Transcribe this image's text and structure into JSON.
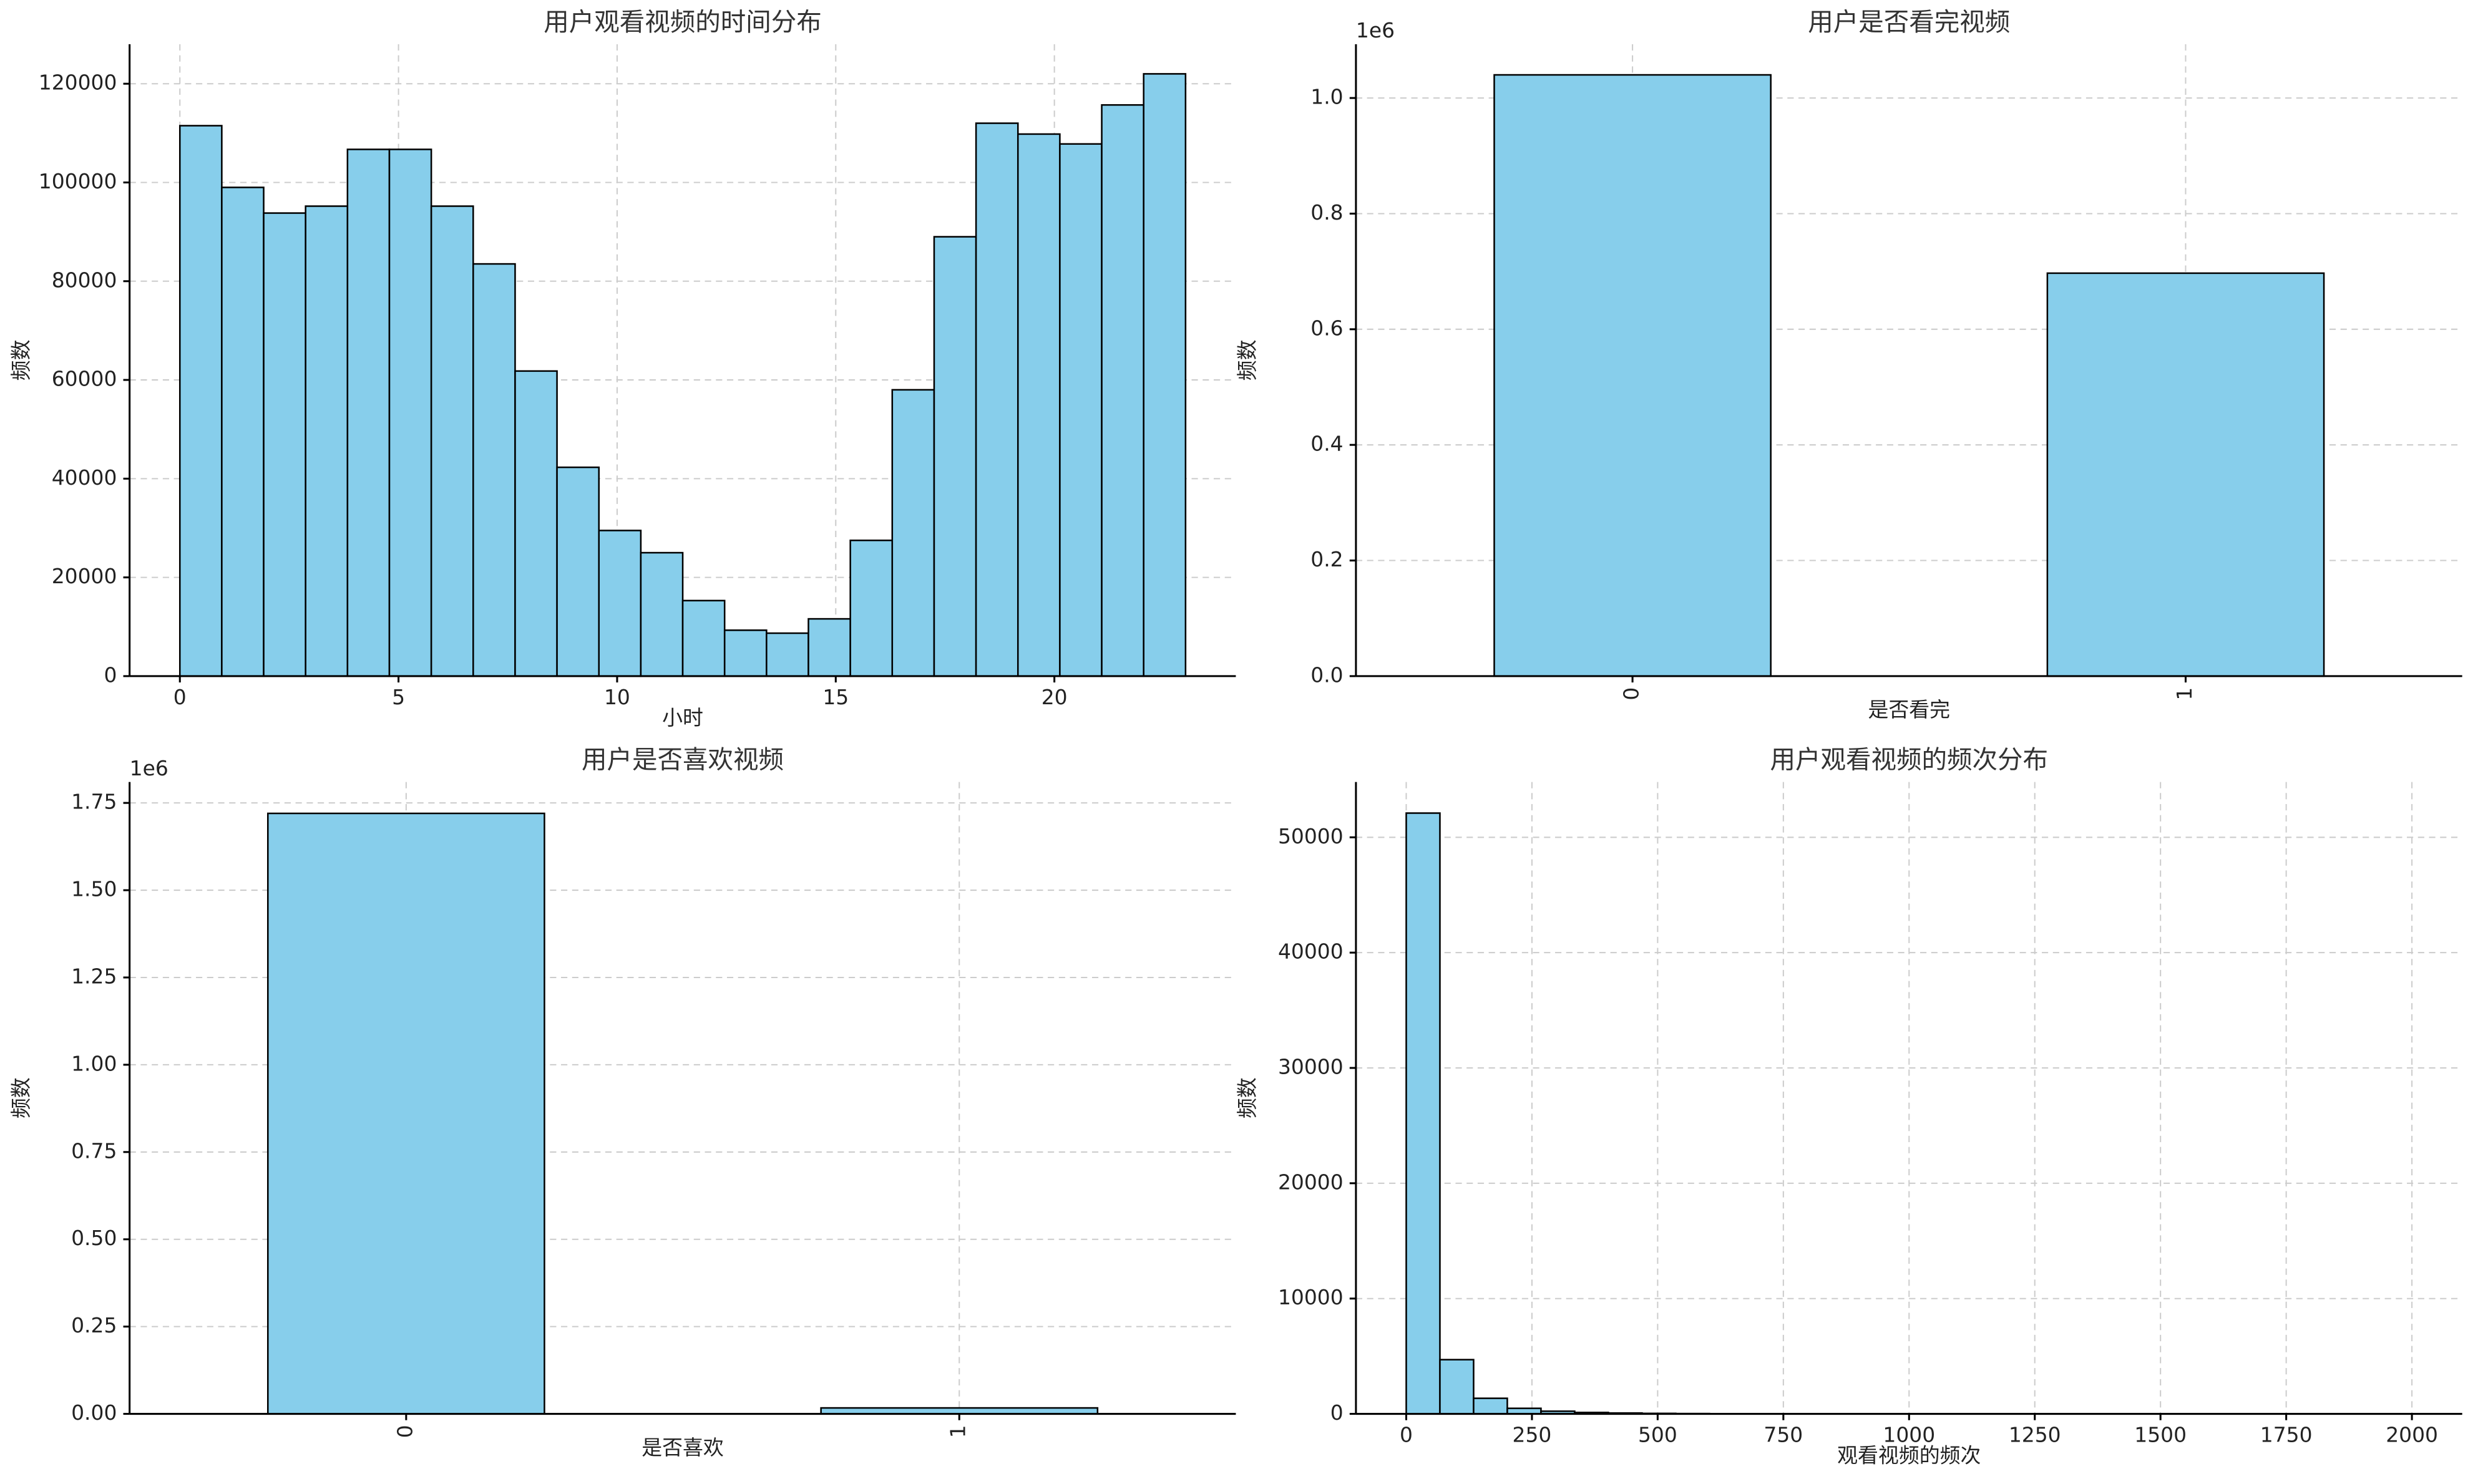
{
  "chart_data": [
    {
      "type": "histogram",
      "title": "用户观看视频的时间分布",
      "xlabel": "小时",
      "ylabel": "频数",
      "bins": [
        0,
        0.958333,
        1.916667,
        2.875,
        3.833333,
        4.791667,
        5.75,
        6.708333,
        7.666667,
        8.625,
        9.583333,
        10.541667,
        11.5,
        12.458333,
        13.416667,
        14.375,
        15.333333,
        16.291667,
        17.25,
        18.208333,
        19.166667,
        20.125,
        21.083333,
        22.041667,
        23
      ],
      "values": [
        111500,
        99000,
        93800,
        95200,
        106700,
        106700,
        95200,
        83500,
        61800,
        42300,
        29500,
        25000,
        15300,
        9300,
        8700,
        11600,
        27500,
        58000,
        89000,
        112000,
        109800,
        107800,
        115700,
        122000
      ],
      "xlim": [
        -1.15,
        24.15
      ],
      "xticks": [
        0,
        5,
        10,
        15,
        20
      ],
      "ylim": [
        0,
        128000
      ],
      "yticks": [
        0,
        20000,
        40000,
        60000,
        80000,
        100000,
        120000
      ],
      "color": "#87ceeb",
      "edgecolor": "#000000",
      "grid": true
    },
    {
      "type": "bar",
      "title": "用户是否看完视频",
      "xlabel": "是否看完",
      "ylabel": "频数",
      "offset_text": "1e6",
      "categories": [
        "0",
        "1"
      ],
      "values": [
        1040000,
        697000
      ],
      "ylim": [
        0,
        1093000
      ],
      "yticks": [
        {
          "value": 0,
          "label": "0.0"
        },
        {
          "value": 200000,
          "label": "0.2"
        },
        {
          "value": 400000,
          "label": "0.4"
        },
        {
          "value": 600000,
          "label": "0.6"
        },
        {
          "value": 800000,
          "label": "0.8"
        },
        {
          "value": 1000000,
          "label": "1.0"
        }
      ],
      "color": "#87ceeb",
      "edgecolor": "#000000",
      "grid": true
    },
    {
      "type": "bar",
      "title": "用户是否喜欢视频",
      "xlabel": "是否喜欢",
      "ylabel": "频数",
      "offset_text": "1e6",
      "categories": [
        "0",
        "1"
      ],
      "values": [
        1720000,
        17000
      ],
      "ylim": [
        0,
        1810000
      ],
      "yticks": [
        {
          "value": 0,
          "label": "0.00"
        },
        {
          "value": 250000,
          "label": "0.25"
        },
        {
          "value": 500000,
          "label": "0.50"
        },
        {
          "value": 750000,
          "label": "0.75"
        },
        {
          "value": 1000000,
          "label": "1.00"
        },
        {
          "value": 1250000,
          "label": "1.25"
        },
        {
          "value": 1500000,
          "label": "1.50"
        },
        {
          "value": 1750000,
          "label": "1.75"
        }
      ],
      "color": "#87ceeb",
      "edgecolor": "#000000",
      "grid": true
    },
    {
      "type": "histogram",
      "title": "用户观看视频的频次分布",
      "xlabel": "观看视频的频次",
      "ylabel": "频数",
      "bins": [
        0,
        67,
        134,
        201,
        268,
        335,
        402,
        469,
        536,
        603,
        670,
        737,
        804,
        871,
        938,
        1005,
        1072,
        1139,
        1206,
        1273,
        1340,
        1407,
        1474,
        1541,
        1608,
        1675,
        1742,
        1809,
        1876,
        1943,
        2010
      ],
      "values": [
        52100,
        4700,
        1350,
        480,
        230,
        120,
        70,
        40,
        25,
        15,
        10,
        8,
        5,
        4,
        3,
        2,
        2,
        1,
        1,
        1,
        1,
        0,
        1,
        0,
        0,
        1,
        0,
        0,
        0,
        1
      ],
      "xlim": [
        -100,
        2100
      ],
      "xticks": [
        0,
        250,
        500,
        750,
        1000,
        1250,
        1500,
        1750,
        2000
      ],
      "ylim": [
        0,
        54800
      ],
      "yticks": [
        0,
        10000,
        20000,
        30000,
        40000,
        50000
      ],
      "color": "#87ceeb",
      "edgecolor": "#000000",
      "grid": true
    }
  ]
}
